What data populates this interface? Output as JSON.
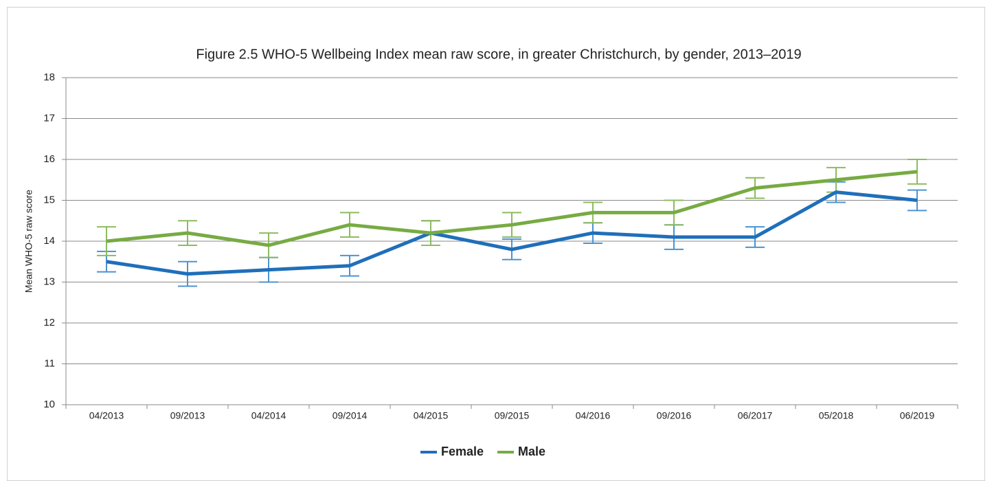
{
  "chart_data": {
    "type": "line",
    "title": "Figure 2.5 WHO-5 Wellbeing Index mean raw score, in greater Christchurch, by gender, 2013–2019",
    "ylabel": "Mean WHO-5 raw score",
    "categories": [
      "04/2013",
      "09/2013",
      "04/2014",
      "09/2014",
      "04/2015",
      "09/2015",
      "04/2016",
      "09/2016",
      "06/2017",
      "05/2018",
      "06/2019"
    ],
    "series": [
      {
        "name": "Female",
        "color": "#1f6fba",
        "error_color": "#4b93d1",
        "values": [
          13.5,
          13.2,
          13.3,
          13.4,
          14.2,
          13.8,
          14.2,
          14.1,
          14.1,
          15.2,
          15.0
        ],
        "errors": [
          0.25,
          0.3,
          0.3,
          0.25,
          0.3,
          0.25,
          0.25,
          0.3,
          0.25,
          0.25,
          0.25
        ]
      },
      {
        "name": "Male",
        "color": "#77ab43",
        "error_color": "#8dbb5e",
        "values": [
          14.0,
          14.2,
          13.9,
          14.4,
          14.2,
          14.4,
          14.7,
          14.7,
          15.3,
          15.5,
          15.7
        ],
        "errors": [
          0.35,
          0.3,
          0.3,
          0.3,
          0.3,
          0.3,
          0.25,
          0.3,
          0.25,
          0.3,
          0.3
        ]
      }
    ],
    "ylim": [
      10,
      18
    ],
    "yticks": [
      10,
      11,
      12,
      13,
      14,
      15,
      16,
      17,
      18
    ],
    "grid": true,
    "legend": "bottom"
  }
}
